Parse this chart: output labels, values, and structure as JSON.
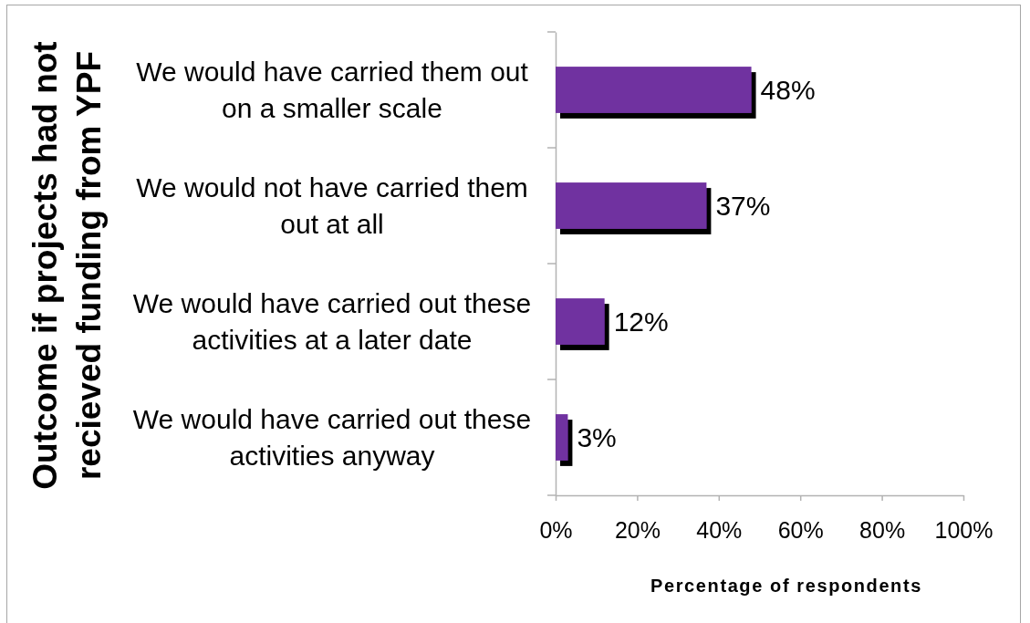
{
  "chart_data": {
    "type": "bar",
    "orientation": "horizontal",
    "xlabel": "Percentage of respondents",
    "ylabel": "Outcome if projects had not recieved funding from YPF",
    "categories": [
      "We would have carried them out on a smaller scale",
      "We would not have carried them out at all",
      "We would have carried out these activities at a later date",
      "We would have carried out these activities anyway"
    ],
    "values": [
      48,
      37,
      12,
      3
    ],
    "color": "#7030a0",
    "value_labels": [
      "48%",
      "37%",
      "12%",
      "3%"
    ],
    "xlim": [
      0,
      100
    ],
    "xticks": [
      {
        "value": 0,
        "label": "0%"
      },
      {
        "value": 20,
        "label": "20%"
      },
      {
        "value": 40,
        "label": "40%"
      },
      {
        "value": 60,
        "label": "60%"
      },
      {
        "value": 80,
        "label": "80%"
      },
      {
        "value": 100,
        "label": "100%"
      }
    ]
  }
}
